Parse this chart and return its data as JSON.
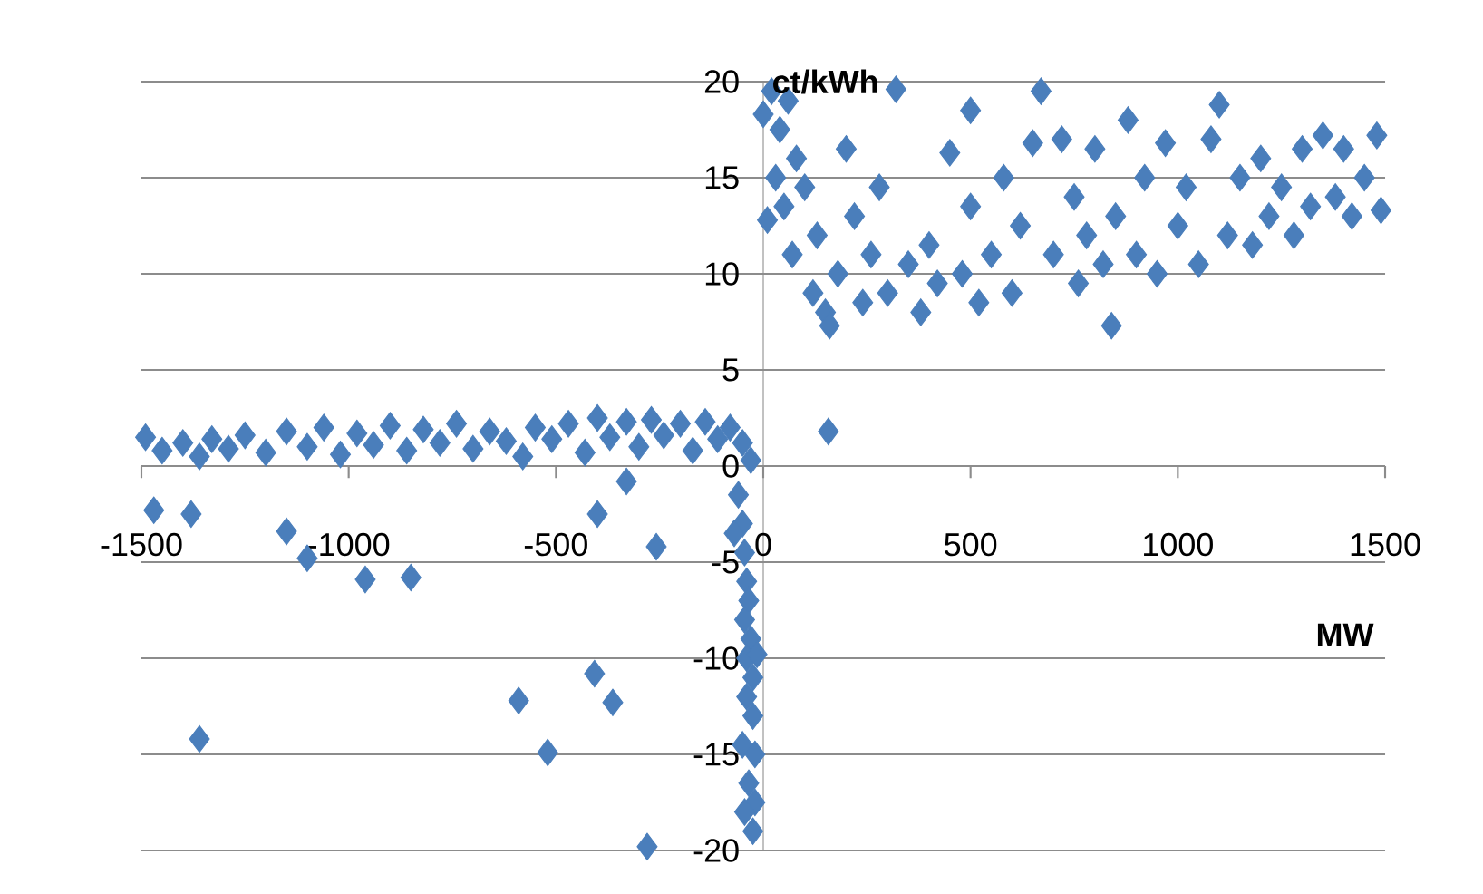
{
  "chart_data": {
    "type": "scatter",
    "xlabel": "MW",
    "ylabel": "ct/kWh",
    "xlim": [
      -1500,
      1500
    ],
    "ylim": [
      -20,
      20
    ],
    "xticks": [
      -1500,
      -1000,
      -500,
      0,
      500,
      1000,
      1500
    ],
    "yticks": [
      -20,
      -15,
      -10,
      -5,
      0,
      5,
      10,
      15,
      20
    ],
    "grid": "y",
    "marker": "diamond",
    "color": "#4a7ebb",
    "x": [
      -1490,
      -1450,
      -1400,
      -1360,
      -1330,
      -1290,
      -1250,
      -1200,
      -1150,
      -1100,
      -1060,
      -1020,
      -980,
      -940,
      -900,
      -860,
      -820,
      -780,
      -740,
      -700,
      -660,
      -620,
      -580,
      -550,
      -510,
      -470,
      -430,
      -400,
      -370,
      -330,
      -300,
      -270,
      -240,
      -200,
      -170,
      -140,
      -110,
      -80,
      -50,
      -30,
      -1470,
      -1380,
      -1150,
      -1100,
      -960,
      -850,
      -1360,
      -590,
      -520,
      -407,
      -363,
      -400,
      -330,
      -258,
      -280,
      -60,
      -50,
      -45,
      -40,
      -35,
      -45,
      -30,
      -40,
      -25,
      -40,
      -25,
      -50,
      -20,
      -35,
      -20,
      -45,
      -25,
      -70,
      -15,
      0,
      20,
      40,
      60,
      80,
      10,
      30,
      50,
      70,
      100,
      120,
      130,
      150,
      160,
      180,
      200,
      220,
      240,
      260,
      280,
      300,
      320,
      350,
      380,
      400,
      420,
      450,
      480,
      500,
      500,
      520,
      550,
      580,
      600,
      620,
      650,
      670,
      700,
      720,
      750,
      760,
      780,
      800,
      820,
      840,
      850,
      880,
      900,
      920,
      950,
      970,
      1000,
      1020,
      1050,
      1080,
      1100,
      1120,
      1150,
      1180,
      1200,
      1220,
      1250,
      1280,
      1300,
      1320,
      1350,
      1380,
      1400,
      1420,
      1450,
      1480,
      1490,
      157
    ],
    "values": [
      1.5,
      0.8,
      1.2,
      0.5,
      1.4,
      0.9,
      1.6,
      0.7,
      1.8,
      1.0,
      2.0,
      0.6,
      1.7,
      1.1,
      2.1,
      0.8,
      1.9,
      1.2,
      2.2,
      0.9,
      1.8,
      1.3,
      0.5,
      2.0,
      1.4,
      2.2,
      0.7,
      2.5,
      1.5,
      2.3,
      1.0,
      2.4,
      1.6,
      2.2,
      0.8,
      2.3,
      1.4,
      2.0,
      1.2,
      0.3,
      -2.3,
      -2.5,
      -3.4,
      -4.8,
      -5.9,
      -5.8,
      -14.2,
      -12.2,
      -14.9,
      -10.8,
      -12.3,
      -2.5,
      -0.8,
      -4.2,
      -19.8,
      -1.5,
      -3,
      -4.5,
      -6,
      -7,
      -8,
      -9,
      -10,
      -11,
      -12,
      -13,
      -14.5,
      -15,
      -16.5,
      -17.5,
      -18,
      -19,
      -3.5,
      -9.8,
      18.3,
      19.5,
      17.5,
      19,
      16,
      12.8,
      15,
      13.5,
      11,
      14.5,
      9,
      12,
      8,
      7.3,
      10,
      16.5,
      13,
      8.5,
      11,
      14.5,
      9,
      19.6,
      10.5,
      8,
      11.5,
      9.5,
      16.3,
      10,
      18.5,
      13.5,
      8.5,
      11,
      15,
      9,
      12.5,
      16.8,
      19.5,
      11,
      17,
      14,
      9.5,
      12,
      16.5,
      10.5,
      7.3,
      13,
      18,
      11,
      15,
      10,
      16.8,
      12.5,
      14.5,
      10.5,
      17,
      18.8,
      12,
      15,
      11.5,
      16,
      13,
      14.5,
      12,
      16.5,
      13.5,
      17.2,
      14,
      16.5,
      13,
      15,
      17.2,
      13.3,
      1.8
    ]
  }
}
